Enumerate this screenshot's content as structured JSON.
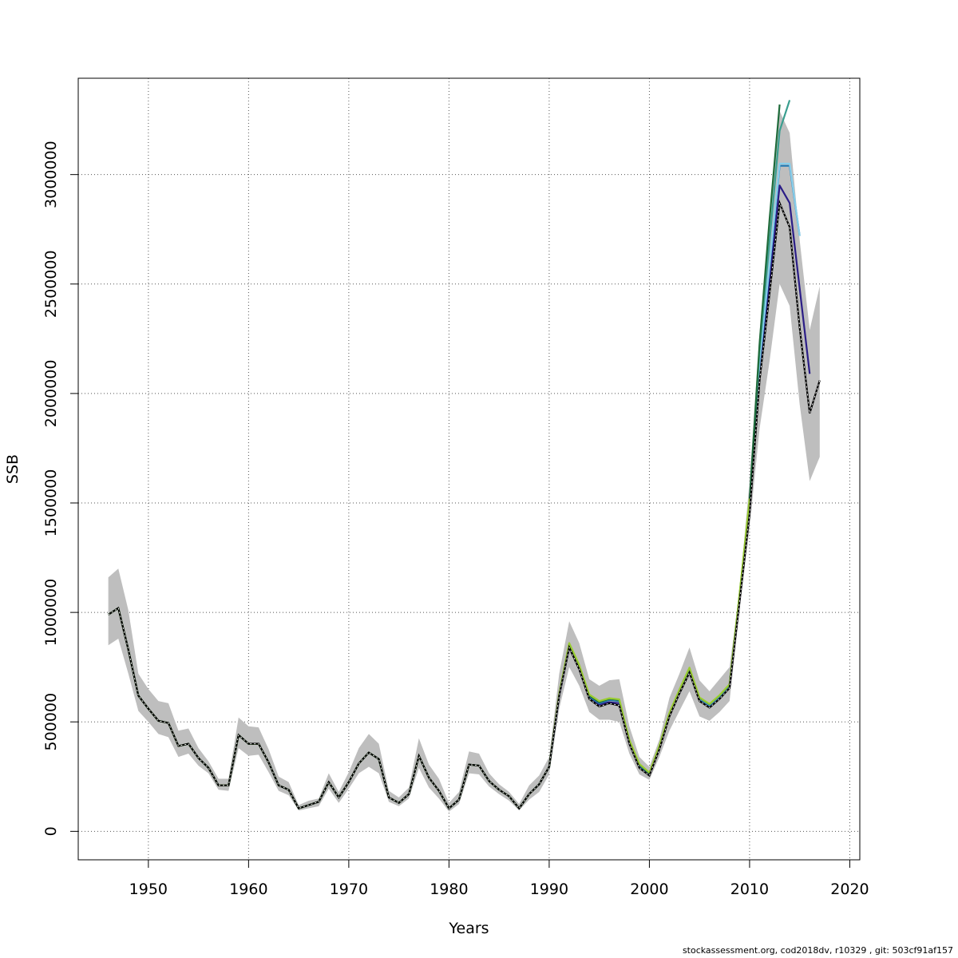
{
  "chart_data": {
    "type": "line",
    "title": "",
    "xlabel": "Years",
    "ylabel": "SSB",
    "xlim": [
      1943,
      2021
    ],
    "ylim": [
      -130000,
      3440000
    ],
    "xticks": [
      1950,
      1960,
      1970,
      1980,
      1990,
      2000,
      2010,
      2020
    ],
    "yticks": [
      0,
      500000,
      1000000,
      1500000,
      2000000,
      2500000,
      3000000
    ],
    "xtick_labels": [
      "1950",
      "1960",
      "1970",
      "1980",
      "1990",
      "2000",
      "2010",
      "2020"
    ],
    "ytick_labels": [
      "0",
      "500000",
      "1000000",
      "1500000",
      "2000000",
      "2500000",
      "3000000"
    ],
    "grid": true,
    "confidence_band": {
      "color": "#bebebe",
      "x": [
        1946,
        1947,
        1948,
        1949,
        1950,
        1951,
        1952,
        1953,
        1954,
        1955,
        1956,
        1957,
        1958,
        1959,
        1960,
        1961,
        1962,
        1963,
        1964,
        1965,
        1966,
        1967,
        1968,
        1969,
        1970,
        1971,
        1972,
        1973,
        1974,
        1975,
        1976,
        1977,
        1978,
        1979,
        1980,
        1981,
        1982,
        1983,
        1984,
        1985,
        1986,
        1987,
        1988,
        1989,
        1990,
        1991,
        1992,
        1993,
        1994,
        1995,
        1996,
        1997,
        1998,
        1999,
        2000,
        2001,
        2002,
        2003,
        2004,
        2005,
        2006,
        2007,
        2008,
        2009,
        2010,
        2011,
        2012,
        2013,
        2014,
        2015,
        2016,
        2017
      ],
      "lower": [
        850000,
        880000,
        720000,
        550000,
        500000,
        445000,
        430000,
        340000,
        355000,
        300000,
        265000,
        190000,
        185000,
        380000,
        345000,
        350000,
        270000,
        185000,
        165000,
        95000,
        105000,
        115000,
        195000,
        130000,
        195000,
        265000,
        295000,
        265000,
        135000,
        115000,
        150000,
        290000,
        200000,
        150000,
        90000,
        125000,
        265000,
        260000,
        205000,
        170000,
        140000,
        95000,
        145000,
        180000,
        260000,
        560000,
        750000,
        665000,
        545000,
        510000,
        510000,
        500000,
        355000,
        260000,
        235000,
        340000,
        460000,
        550000,
        640000,
        525000,
        505000,
        545000,
        595000,
        1010000,
        1390000,
        1840000,
        2150000,
        2500000,
        2400000,
        1950000,
        1600000,
        1710000
      ],
      "upper": [
        1160000,
        1200000,
        1010000,
        720000,
        650000,
        595000,
        585000,
        460000,
        470000,
        380000,
        320000,
        240000,
        240000,
        520000,
        480000,
        475000,
        375000,
        250000,
        225000,
        120000,
        140000,
        150000,
        265000,
        180000,
        270000,
        380000,
        445000,
        400000,
        185000,
        155000,
        200000,
        425000,
        305000,
        240000,
        130000,
        180000,
        365000,
        355000,
        265000,
        215000,
        180000,
        125000,
        210000,
        255000,
        340000,
        720000,
        960000,
        860000,
        695000,
        665000,
        690000,
        695000,
        480000,
        340000,
        295000,
        420000,
        610000,
        720000,
        840000,
        690000,
        640000,
        695000,
        750000,
        1100000,
        1600000,
        2280000,
        2800000,
        3290000,
        3190000,
        2700000,
        2290000,
        2490000
      ]
    },
    "series": [
      {
        "color": "#000000",
        "dashed": true,
        "x": [
          1946,
          1947,
          1948,
          1949,
          1950,
          1951,
          1952,
          1953,
          1954,
          1955,
          1956,
          1957,
          1958,
          1959,
          1960,
          1961,
          1962,
          1963,
          1964,
          1965,
          1966,
          1967,
          1968,
          1969,
          1970,
          1971,
          1972,
          1973,
          1974,
          1975,
          1976,
          1977,
          1978,
          1979,
          1980,
          1981,
          1982,
          1983,
          1984,
          1985,
          1986,
          1987,
          1988,
          1989,
          1990,
          1991,
          1992,
          1993,
          1994,
          1995,
          1996,
          1997,
          1998,
          1999,
          2000,
          2001,
          2002,
          2003,
          2004,
          2005,
          2006,
          2007,
          2008,
          2009,
          2010,
          2011,
          2012,
          2013,
          2014,
          2015,
          2016,
          2017
        ],
        "y": [
          990000,
          1020000,
          830000,
          620000,
          560000,
          505000,
          495000,
          390000,
          400000,
          335000,
          290000,
          210000,
          210000,
          440000,
          400000,
          400000,
          315000,
          210000,
          190000,
          105000,
          120000,
          135000,
          225000,
          155000,
          225000,
          310000,
          360000,
          330000,
          155000,
          130000,
          170000,
          345000,
          245000,
          185000,
          105000,
          145000,
          305000,
          300000,
          230000,
          190000,
          160000,
          105000,
          170000,
          215000,
          295000,
          620000,
          840000,
          740000,
          605000,
          570000,
          585000,
          575000,
          400000,
          290000,
          255000,
          375000,
          525000,
          630000,
          725000,
          595000,
          565000,
          605000,
          655000,
          1050000,
          1450000,
          2060000,
          2460000,
          2870000,
          2760000,
          2300000,
          1910000,
          2060000
        ]
      },
      {
        "color": "#2b1d87",
        "dashed": false,
        "x": [
          1946,
          1947,
          1948,
          1949,
          1950,
          1951,
          1952,
          1953,
          1954,
          1955,
          1956,
          1957,
          1958,
          1959,
          1960,
          1961,
          1962,
          1963,
          1964,
          1965,
          1966,
          1967,
          1968,
          1969,
          1970,
          1971,
          1972,
          1973,
          1974,
          1975,
          1976,
          1977,
          1978,
          1979,
          1980,
          1981,
          1982,
          1983,
          1984,
          1985,
          1986,
          1987,
          1988,
          1989,
          1990,
          1991,
          1992,
          1993,
          1994,
          1995,
          1996,
          1997,
          1998,
          1999,
          2000,
          2001,
          2002,
          2003,
          2004,
          2005,
          2006,
          2007,
          2008,
          2009,
          2010,
          2011,
          2012,
          2013,
          2014,
          2015,
          2016
        ],
        "y": [
          990000,
          1020000,
          830000,
          620000,
          560000,
          505000,
          495000,
          390000,
          400000,
          335000,
          290000,
          210000,
          210000,
          440000,
          400000,
          400000,
          315000,
          210000,
          190000,
          105000,
          120000,
          135000,
          225000,
          155000,
          225000,
          310000,
          360000,
          330000,
          155000,
          130000,
          170000,
          345000,
          245000,
          185000,
          105000,
          145000,
          305000,
          300000,
          230000,
          190000,
          160000,
          105000,
          170000,
          215000,
          295000,
          620000,
          840000,
          745000,
          610000,
          580000,
          590000,
          585000,
          405000,
          295000,
          258000,
          380000,
          530000,
          635000,
          730000,
          600000,
          570000,
          610000,
          660000,
          1060000,
          1470000,
          2100000,
          2520000,
          2950000,
          2870000,
          2480000,
          2090000
        ]
      },
      {
        "color": "#1f78b4",
        "dashed": false,
        "x": [
          1946,
          1947,
          1948,
          1949,
          1950,
          1951,
          1952,
          1953,
          1954,
          1955,
          1956,
          1957,
          1958,
          1959,
          1960,
          1961,
          1962,
          1963,
          1964,
          1965,
          1966,
          1967,
          1968,
          1969,
          1970,
          1971,
          1972,
          1973,
          1974,
          1975,
          1976,
          1977,
          1978,
          1979,
          1980,
          1981,
          1982,
          1983,
          1984,
          1985,
          1986,
          1987,
          1988,
          1989,
          1990,
          1991,
          1992,
          1993,
          1994,
          1995,
          1996,
          1997,
          1998,
          1999,
          2000,
          2001,
          2002,
          2003,
          2004,
          2005,
          2006,
          2007,
          2008,
          2009,
          2010,
          2011,
          2012,
          2013,
          2014,
          2015
        ],
        "y": [
          990000,
          1020000,
          830000,
          620000,
          560000,
          505000,
          495000,
          390000,
          400000,
          335000,
          290000,
          210000,
          210000,
          440000,
          400000,
          400000,
          315000,
          210000,
          190000,
          105000,
          120000,
          135000,
          225000,
          155000,
          225000,
          310000,
          360000,
          330000,
          155000,
          130000,
          170000,
          345000,
          245000,
          185000,
          105000,
          145000,
          305000,
          300000,
          230000,
          190000,
          160000,
          105000,
          170000,
          215000,
          295000,
          625000,
          845000,
          750000,
          615000,
          585000,
          600000,
          595000,
          410000,
          300000,
          262000,
          385000,
          535000,
          640000,
          735000,
          605000,
          575000,
          615000,
          665000,
          1070000,
          1490000,
          2140000,
          2580000,
          3040000,
          3040000,
          2720000
        ]
      },
      {
        "color": "#87ceeb",
        "dashed": false,
        "x": [
          1995,
          1996,
          1997,
          1998,
          1999,
          2000,
          2001,
          2002,
          2003,
          2004,
          2005,
          2006,
          2007,
          2008,
          2009,
          2010,
          2011,
          2012,
          2013,
          2014,
          2015
        ],
        "y": [
          590000,
          605000,
          600000,
          415000,
          305000,
          265000,
          388000,
          538000,
          643000,
          738000,
          608000,
          578000,
          618000,
          668000,
          1075000,
          1495000,
          2150000,
          2590000,
          3050000,
          3050000,
          2720000
        ]
      },
      {
        "color": "#3a9e8f",
        "dashed": false,
        "x": [
          2008,
          2009,
          2010,
          2011,
          2012,
          2013,
          2014
        ],
        "y": [
          670000,
          1080000,
          1510000,
          2200000,
          2700000,
          3200000,
          3340000
        ]
      },
      {
        "color": "#1e6b3a",
        "dashed": false,
        "x": [
          1946,
          1947,
          1948,
          1949,
          1950,
          1951,
          1952,
          1953,
          1954,
          1955,
          1956,
          1957,
          1958,
          1959,
          1960,
          1961,
          1962,
          1963,
          1964,
          1965,
          1966,
          1967,
          1968,
          1969,
          1970,
          1971,
          1972,
          1973,
          1974,
          1975,
          1976,
          1977,
          1978,
          1979,
          1980,
          1981,
          1982,
          1983,
          1984,
          1985,
          1986,
          1987,
          1988,
          1989,
          1990,
          1991,
          1992,
          1993,
          1994,
          1995,
          1996,
          1997,
          1998,
          1999,
          2000,
          2001,
          2002,
          2003,
          2004,
          2005,
          2006,
          2007,
          2008,
          2009,
          2010,
          2011,
          2012,
          2013
        ],
        "y": [
          990000,
          1020000,
          830000,
          620000,
          560000,
          505000,
          495000,
          390000,
          400000,
          335000,
          290000,
          210000,
          210000,
          440000,
          400000,
          400000,
          315000,
          210000,
          190000,
          105000,
          120000,
          135000,
          225000,
          155000,
          225000,
          310000,
          360000,
          330000,
          155000,
          130000,
          170000,
          345000,
          245000,
          185000,
          105000,
          145000,
          305000,
          300000,
          230000,
          190000,
          160000,
          105000,
          170000,
          215000,
          295000,
          625000,
          855000,
          755000,
          620000,
          590000,
          605000,
          600000,
          415000,
          305000,
          265000,
          390000,
          540000,
          645000,
          745000,
          610000,
          580000,
          620000,
          670000,
          1080000,
          1510000,
          2230000,
          2800000,
          3320000
        ]
      },
      {
        "color": "#9acd32",
        "dashed": false,
        "x": [
          1946,
          1947,
          1948,
          1949,
          1950,
          1951,
          1952,
          1953,
          1954,
          1955,
          1956,
          1957,
          1958,
          1959,
          1960,
          1961,
          1962,
          1963,
          1964,
          1965,
          1966,
          1967,
          1968,
          1969,
          1970,
          1971,
          1972,
          1973,
          1974,
          1975,
          1976,
          1977,
          1978,
          1979,
          1980,
          1981,
          1982,
          1983,
          1984,
          1985,
          1986,
          1987,
          1988,
          1989,
          1990,
          1991,
          1992,
          1993,
          1994,
          1995,
          1996,
          1997,
          1998,
          1999,
          2000,
          2001,
          2002,
          2003,
          2004,
          2005,
          2006,
          2007,
          2008,
          2009,
          2010
        ],
        "y": [
          990000,
          1020000,
          830000,
          620000,
          560000,
          505000,
          495000,
          390000,
          400000,
          335000,
          290000,
          210000,
          210000,
          440000,
          400000,
          400000,
          315000,
          210000,
          190000,
          105000,
          120000,
          135000,
          225000,
          155000,
          225000,
          310000,
          360000,
          330000,
          155000,
          130000,
          170000,
          345000,
          245000,
          185000,
          105000,
          145000,
          305000,
          300000,
          230000,
          190000,
          160000,
          105000,
          170000,
          215000,
          295000,
          630000,
          860000,
          760000,
          625000,
          595000,
          608000,
          603000,
          418000,
          308000,
          268000,
          392000,
          542000,
          648000,
          748000,
          612000,
          582000,
          622000,
          672000,
          1085000,
          1520000
        ]
      }
    ]
  },
  "footer": "stockassessment.org, cod2018dv, r10329 , git: 503cf91af157"
}
